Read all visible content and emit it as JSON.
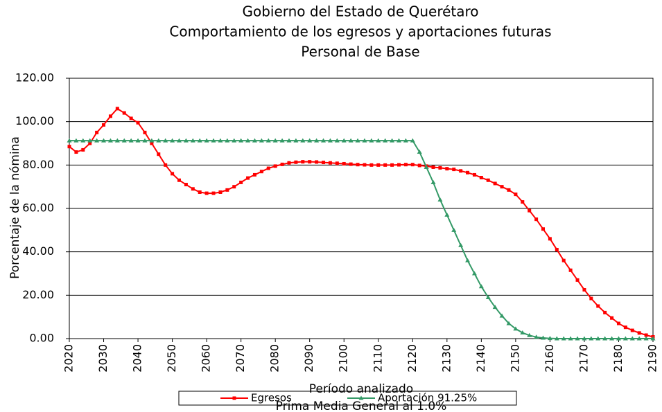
{
  "chart_data": {
    "type": "line",
    "title": "Gobierno del Estado de Querétaro",
    "subtitle": "Comportamiento de los egresos y aportaciones futuras",
    "subtitle2": "Personal de Base",
    "ylabel": "Porcentaje de la nómina",
    "xlabel": "Período analizado",
    "note": "Prima Media General al 1.0%",
    "x": [
      2020,
      2022,
      2024,
      2026,
      2028,
      2030,
      2032,
      2034,
      2036,
      2038,
      2040,
      2042,
      2044,
      2046,
      2048,
      2050,
      2052,
      2054,
      2056,
      2058,
      2060,
      2062,
      2064,
      2066,
      2068,
      2070,
      2072,
      2074,
      2076,
      2078,
      2080,
      2082,
      2084,
      2086,
      2088,
      2090,
      2092,
      2094,
      2096,
      2098,
      2100,
      2102,
      2104,
      2106,
      2108,
      2110,
      2112,
      2114,
      2116,
      2118,
      2120,
      2122,
      2124,
      2126,
      2128,
      2130,
      2132,
      2134,
      2136,
      2138,
      2140,
      2142,
      2144,
      2146,
      2148,
      2150,
      2152,
      2154,
      2156,
      2158,
      2160,
      2162,
      2164,
      2166,
      2168,
      2170,
      2172,
      2174,
      2176,
      2178,
      2180,
      2182,
      2184,
      2186,
      2188,
      2190
    ],
    "series": [
      {
        "name": "Egresos",
        "color": "#ff0000",
        "marker": "square",
        "values": [
          88.5,
          86,
          87,
          90,
          95,
          98.5,
          102.5,
          106,
          104,
          101.5,
          99.5,
          95,
          90,
          85,
          80,
          76,
          73,
          71,
          69,
          67.5,
          67,
          67,
          67.5,
          68.5,
          70,
          72,
          74,
          75.5,
          77,
          78.5,
          79.5,
          80.3,
          81,
          81.3,
          81.5,
          81.5,
          81.4,
          81.2,
          81,
          80.8,
          80.6,
          80.4,
          80.2,
          80.1,
          80,
          80,
          80,
          80,
          80.1,
          80.2,
          80.2,
          79.8,
          79.5,
          79,
          78.7,
          78.3,
          78,
          77.3,
          76.5,
          75.5,
          74.2,
          73,
          71.5,
          70,
          68.5,
          66.5,
          63,
          59,
          55,
          50.5,
          46,
          41,
          36,
          31.5,
          27,
          22.5,
          18.5,
          15,
          12,
          9.5,
          7,
          5.2,
          3.8,
          2.6,
          1.6,
          0.8
        ]
      },
      {
        "name": "Aportación 91.25%",
        "color": "#339966",
        "marker": "triangle",
        "values": [
          91.25,
          91.25,
          91.25,
          91.25,
          91.25,
          91.25,
          91.25,
          91.25,
          91.25,
          91.25,
          91.25,
          91.25,
          91.25,
          91.25,
          91.25,
          91.25,
          91.25,
          91.25,
          91.25,
          91.25,
          91.25,
          91.25,
          91.25,
          91.25,
          91.25,
          91.25,
          91.25,
          91.25,
          91.25,
          91.25,
          91.25,
          91.25,
          91.25,
          91.25,
          91.25,
          91.25,
          91.25,
          91.25,
          91.25,
          91.25,
          91.25,
          91.25,
          91.25,
          91.25,
          91.25,
          91.25,
          91.25,
          91.25,
          91.25,
          91.25,
          91.25,
          86,
          79,
          72,
          64,
          57,
          50,
          43,
          36,
          30,
          24,
          19,
          14.5,
          10.5,
          7,
          4.5,
          2.7,
          1.5,
          0.7,
          0.3,
          0.1,
          0,
          0,
          0,
          0,
          0,
          0,
          0,
          0,
          0,
          0,
          0,
          0,
          0,
          0,
          0
        ]
      }
    ],
    "xlim": [
      2020,
      2190
    ],
    "xticks": [
      2020,
      2030,
      2040,
      2050,
      2060,
      2070,
      2080,
      2090,
      2100,
      2110,
      2120,
      2130,
      2140,
      2150,
      2160,
      2170,
      2180,
      2190
    ],
    "ylim": [
      0,
      120
    ],
    "yticks": [
      {
        "value": 0,
        "label": "0.00"
      },
      {
        "value": 20,
        "label": "20.00"
      },
      {
        "value": 40,
        "label": "40.00"
      },
      {
        "value": 60,
        "label": "60.00"
      },
      {
        "value": 80,
        "label": "80.00"
      },
      {
        "value": 100,
        "label": "100.00"
      },
      {
        "value": 120,
        "label": "120.00"
      }
    ],
    "grid": true,
    "legend": "bottom"
  }
}
